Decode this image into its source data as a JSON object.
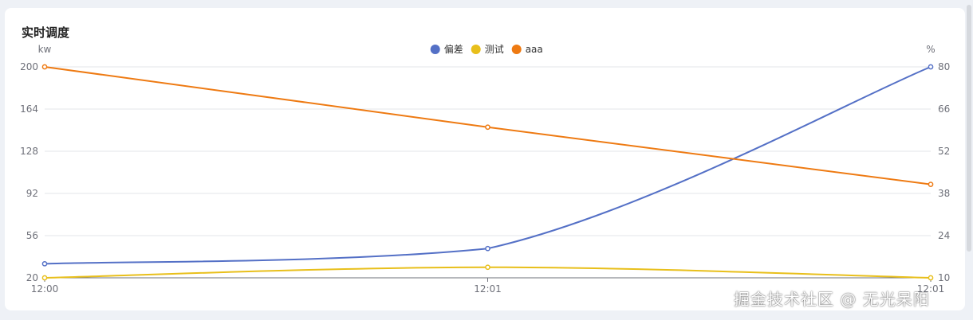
{
  "panel": {
    "title": "实时调度"
  },
  "watermark": "掘金技术社区 @ 无光呆阳",
  "chart_data": {
    "type": "line",
    "title": "实时调度",
    "categories": [
      "12:00",
      "12:01",
      "12:01"
    ],
    "legend_position": "top-center",
    "grid": true,
    "y_left": {
      "label": "kw",
      "range": [
        20,
        200
      ],
      "ticks": [
        20,
        56,
        92,
        128,
        164,
        200
      ]
    },
    "y_right": {
      "label": "%",
      "range": [
        10,
        80
      ],
      "ticks": [
        10,
        24,
        38,
        52,
        66,
        80
      ]
    },
    "series": [
      {
        "name": "偏差",
        "color": "#5470c6",
        "axis": "left",
        "smooth": true,
        "values": [
          32,
          45,
          200
        ]
      },
      {
        "name": "测试",
        "color": "#e8bf1b",
        "axis": "left",
        "smooth": true,
        "values": [
          20,
          29,
          20
        ]
      },
      {
        "name": "aaa",
        "color": "#ee7a12",
        "axis": "right",
        "smooth": false,
        "values": [
          80,
          60,
          41
        ]
      }
    ]
  }
}
